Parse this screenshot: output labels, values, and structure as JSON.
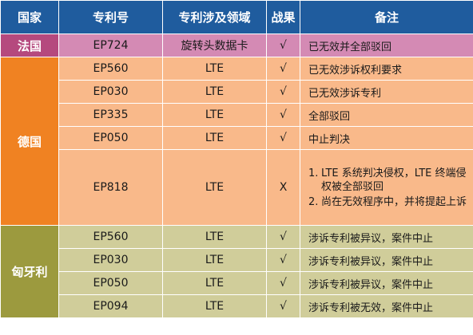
{
  "headers": [
    "国家",
    "专利号",
    "专利涉及领域",
    "战果",
    "备注"
  ],
  "groups": [
    {
      "country": "法国",
      "rows": [
        {
          "patent": "EP724",
          "field": "旋转头数据卡",
          "result": "√",
          "remark": "已无效并全部驳回"
        }
      ]
    },
    {
      "country": "德国",
      "rows": [
        {
          "patent": "EP560",
          "field": "LTE",
          "result": "√",
          "remark": "已无效涉诉权利要求"
        },
        {
          "patent": "EP030",
          "field": "LTE",
          "result": "√",
          "remark": "已无效涉诉专利"
        },
        {
          "patent": "EP335",
          "field": "LTE",
          "result": "√",
          "remark": "全部驳回"
        },
        {
          "patent": "EP050",
          "field": "LTE",
          "result": "√",
          "remark": "中止判决"
        },
        {
          "patent": "EP818",
          "field": "LTE",
          "result": "X",
          "remark_items": [
            {
              "num": "1.",
              "text": "LTE 系统判决侵权，LTE 终端侵权被全部驳回"
            },
            {
              "num": "2.",
              "text": "尚在无效程序中，并将提起上诉"
            }
          ]
        }
      ]
    },
    {
      "country": "匈牙利",
      "rows": [
        {
          "patent": "EP560",
          "field": "LTE",
          "result": "√",
          "remark": "涉诉专利被异议，案件中止"
        },
        {
          "patent": "EP030",
          "field": "LTE",
          "result": "√",
          "remark": "涉诉专利被异议，案件中止"
        },
        {
          "patent": "EP050",
          "field": "LTE",
          "result": "√",
          "remark": "涉诉专利被异议，案件中止"
        },
        {
          "patent": "EP094",
          "field": "LTE",
          "result": "√",
          "remark": "涉诉专利被无效，案件中止"
        }
      ]
    }
  ]
}
